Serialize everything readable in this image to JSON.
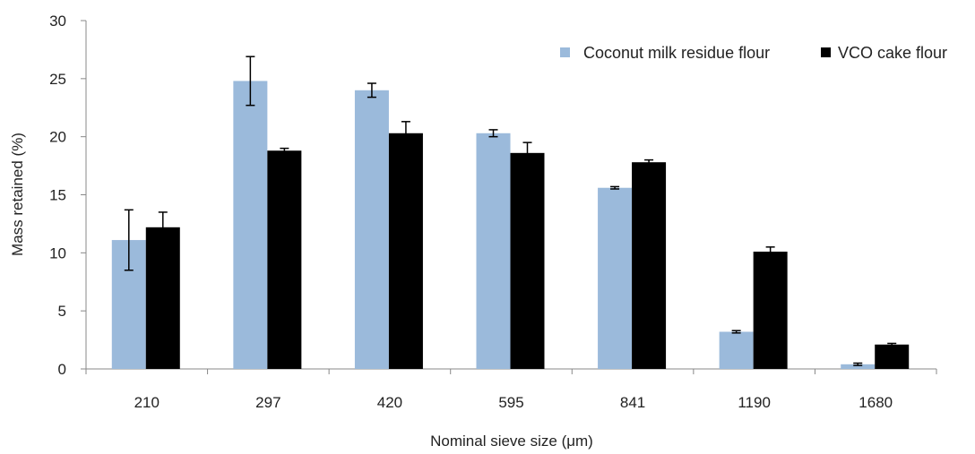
{
  "chart_data": {
    "type": "bar",
    "xlabel": "Nominal sieve size (μm)",
    "ylabel": "Mass retained (%)",
    "ylim": [
      0,
      30
    ],
    "yticks": [
      0,
      5,
      10,
      15,
      20,
      25,
      30
    ],
    "categories": [
      "210",
      "297",
      "420",
      "595",
      "841",
      "1190",
      "1680"
    ],
    "series": [
      {
        "name": "Coconut milk residue flour",
        "color": "#9bbadb",
        "values": [
          11.1,
          24.8,
          24.0,
          20.3,
          15.6,
          3.2,
          0.4
        ],
        "errors": [
          2.6,
          2.1,
          0.6,
          0.3,
          0.1,
          0.1,
          0.1
        ]
      },
      {
        "name": "VCO cake flour",
        "color": "#000000",
        "values": [
          12.2,
          18.8,
          20.3,
          18.6,
          17.8,
          10.1,
          2.1
        ],
        "errors": [
          1.3,
          0.2,
          1.0,
          0.9,
          0.2,
          0.4,
          0.1
        ]
      }
    ],
    "legend_position": "top-right",
    "grid": false
  }
}
